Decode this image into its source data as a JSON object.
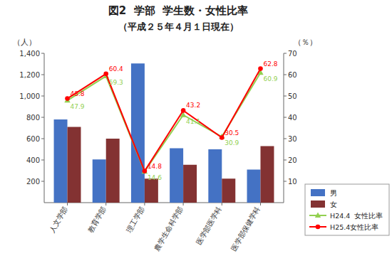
{
  "chart_data": {
    "type": "bar",
    "title": "図2  学部  学生数・女性比率",
    "subtitle": "（平成２５年４月１日現在）",
    "y_label": "（人）",
    "y2_label": "（％）",
    "categories": [
      "人文学部",
      "教育学部",
      "理工学部",
      "農学生命科学部",
      "医学部医学科",
      "医学部保健学科"
    ],
    "series": [
      {
        "name": "男",
        "type": "bar",
        "color": "#4472C4",
        "values": [
          780,
          405,
          1305,
          510,
          500,
          310
        ]
      },
      {
        "name": "女",
        "type": "bar",
        "color": "#833232",
        "values": [
          710,
          600,
          225,
          355,
          225,
          530
        ]
      },
      {
        "name": "H24.4  女性比率",
        "type": "line",
        "axis": "y2",
        "color": "#92D050",
        "marker": "triangle",
        "data_labels": true,
        "values": [
          47.9,
          59.3,
          14.6,
          41.1,
          30.9,
          60.9
        ]
      },
      {
        "name": "H25.4女性比率",
        "type": "line",
        "axis": "y2",
        "color": "#FF0000",
        "marker": "circle",
        "data_labels": true,
        "values": [
          48.8,
          60.4,
          14.8,
          43.2,
          30.5,
          62.8
        ]
      }
    ],
    "ylim": [
      0,
      1400
    ],
    "yticks": [
      200,
      400,
      600,
      800,
      {
        "value": 1000,
        "label": "1,000"
      },
      {
        "value": 1200,
        "label": "1,200"
      },
      {
        "value": 1400,
        "label": "1,400"
      }
    ],
    "y2lim": [
      0,
      70
    ],
    "y2ticks": [
      10,
      20,
      30,
      40,
      50,
      60,
      70
    ],
    "grid": false,
    "legend": "lower right"
  }
}
